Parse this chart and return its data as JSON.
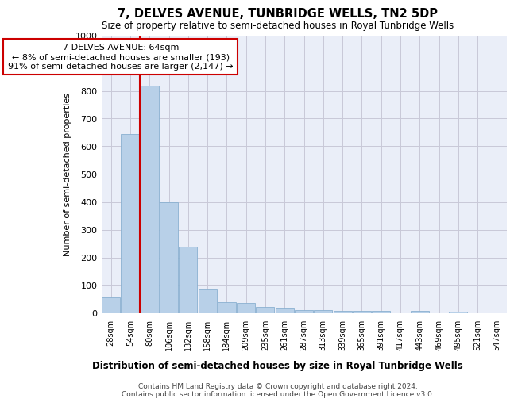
{
  "title": "7, DELVES AVENUE, TUNBRIDGE WELLS, TN2 5DP",
  "subtitle": "Size of property relative to semi-detached houses in Royal Tunbridge Wells",
  "xlabel_dist": "Distribution of semi-detached houses by size in Royal Tunbridge Wells",
  "ylabel": "Number of semi-detached properties",
  "footer1": "Contains HM Land Registry data © Crown copyright and database right 2024.",
  "footer2": "Contains public sector information licensed under the Open Government Licence v3.0.",
  "categories": [
    "28sqm",
    "54sqm",
    "80sqm",
    "106sqm",
    "132sqm",
    "158sqm",
    "184sqm",
    "209sqm",
    "235sqm",
    "261sqm",
    "287sqm",
    "313sqm",
    "339sqm",
    "365sqm",
    "391sqm",
    "417sqm",
    "443sqm",
    "469sqm",
    "495sqm",
    "521sqm",
    "547sqm"
  ],
  "values": [
    55,
    645,
    820,
    400,
    240,
    85,
    40,
    37,
    22,
    17,
    10,
    10,
    8,
    6,
    7,
    0,
    8,
    0,
    5,
    0,
    0
  ],
  "bar_color": "#b8d0e8",
  "bar_edge_color": "#8ab0d0",
  "grid_color": "#c8c8d8",
  "background_color": "#eaeef8",
  "red_line_x": 1.5,
  "annotation_line1": "7 DELVES AVENUE: 64sqm",
  "annotation_line2": "← 8% of semi-detached houses are smaller (193)",
  "annotation_line3": "91% of semi-detached houses are larger (2,147) →",
  "annotation_box_color": "#ffffff",
  "annotation_border_color": "#cc0000",
  "red_line_color": "#cc0000",
  "ylim": [
    0,
    1000
  ],
  "yticks": [
    0,
    100,
    200,
    300,
    400,
    500,
    600,
    700,
    800,
    900,
    1000
  ]
}
